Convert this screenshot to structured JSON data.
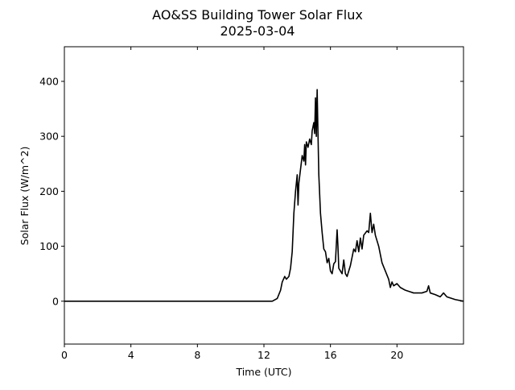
{
  "chart_data": {
    "type": "line",
    "title": "AO&SS Building Tower Solar Flux",
    "subtitle": "2025-03-04",
    "xlabel": "Time (UTC)",
    "ylabel": "Solar Flux (W/m^2)",
    "xlim": [
      0,
      24
    ],
    "ylim": [
      -78,
      463
    ],
    "xticks": [
      0,
      4,
      8,
      12,
      16,
      20
    ],
    "yticks": [
      0,
      100,
      200,
      300,
      400
    ],
    "grid": false,
    "x": [
      0,
      12.5,
      12.8,
      13.0,
      13.1,
      13.25,
      13.35,
      13.5,
      13.6,
      13.7,
      13.8,
      13.9,
      14.0,
      14.05,
      14.1,
      14.2,
      14.3,
      14.4,
      14.45,
      14.5,
      14.55,
      14.65,
      14.75,
      14.85,
      14.9,
      15.0,
      15.05,
      15.1,
      15.15,
      15.2,
      15.25,
      15.3,
      15.4,
      15.5,
      15.6,
      15.7,
      15.8,
      15.9,
      16.0,
      16.1,
      16.2,
      16.3,
      16.4,
      16.45,
      16.5,
      16.6,
      16.7,
      16.8,
      16.9,
      17.0,
      17.2,
      17.4,
      17.5,
      17.6,
      17.7,
      17.8,
      17.9,
      18.0,
      18.2,
      18.3,
      18.4,
      18.5,
      18.6,
      18.7,
      18.9,
      19.1,
      19.3,
      19.5,
      19.6,
      19.7,
      19.8,
      20.0,
      20.2,
      20.5,
      20.7,
      21.0,
      21.5,
      21.8,
      21.9,
      22.0,
      22.3,
      22.6,
      22.8,
      23.0,
      23.5,
      24.0
    ],
    "series": [
      {
        "name": "Solar Flux",
        "color": "#000000",
        "values": [
          0,
          0,
          5,
          20,
          35,
          45,
          40,
          45,
          60,
          90,
          160,
          200,
          230,
          175,
          215,
          240,
          265,
          255,
          285,
          248,
          290,
          280,
          295,
          285,
          310,
          325,
          305,
          370,
          300,
          385,
          305,
          230,
          160,
          125,
          95,
          90,
          70,
          78,
          55,
          50,
          68,
          72,
          130,
          100,
          60,
          55,
          50,
          75,
          50,
          45,
          65,
          95,
          90,
          110,
          90,
          115,
          95,
          120,
          128,
          125,
          160,
          125,
          140,
          120,
          100,
          70,
          55,
          40,
          25,
          35,
          28,
          32,
          25,
          20,
          18,
          15,
          15,
          18,
          28,
          15,
          12,
          8,
          15,
          8,
          3,
          0
        ]
      }
    ]
  }
}
